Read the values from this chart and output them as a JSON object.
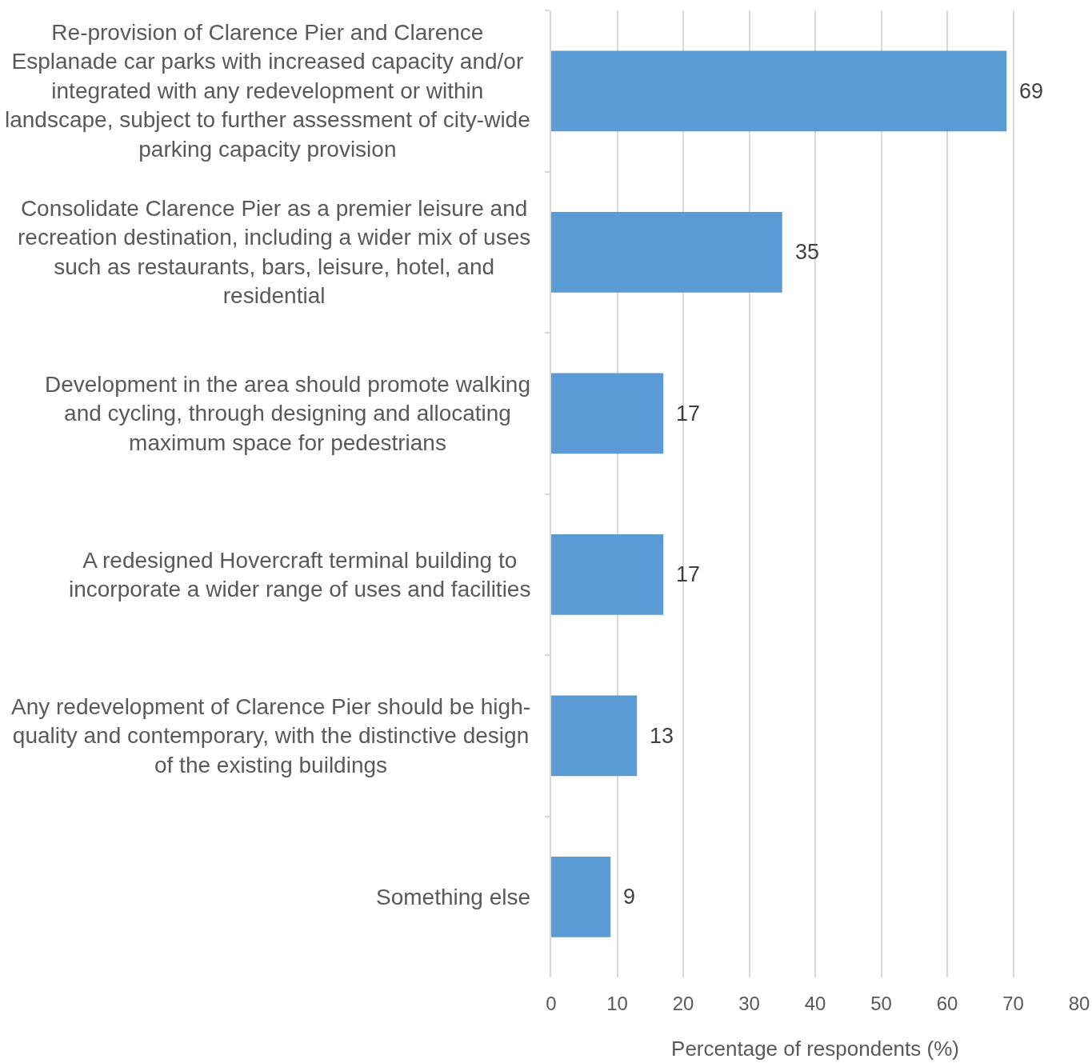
{
  "chart_data": {
    "type": "bar",
    "orientation": "horizontal",
    "xlabel": "Percentage of respondents (%)",
    "categories": [
      "Re-provision of Clarence Pier and Clarence Esplanade car parks with increased capacity and/or integrated with any redevelopment or within landscape, subject to further assessment of city-wide parking capacity provision",
      "Consolidate Clarence Pier as a premier leisure and recreation destination, including a wider mix of uses such as restaurants, bars, leisure, hotel, and residential",
      "Development in the area should promote walking and cycling, through designing and allocating maximum space for pedestrians",
      "A redesigned Hovercraft terminal building to incorporate a wider range of uses and facilities",
      "Any redevelopment of Clarence Pier should be high-quality and contemporary, with the distinctive design of the existing buildings",
      "Something else"
    ],
    "values": [
      69,
      35,
      17,
      17,
      13,
      9
    ],
    "color": "#5b9bd5",
    "xlim": [
      0,
      80
    ],
    "xticks": [
      0,
      10,
      20,
      30,
      40,
      50,
      60,
      70,
      80
    ],
    "grid": "x",
    "data_labels": true
  }
}
